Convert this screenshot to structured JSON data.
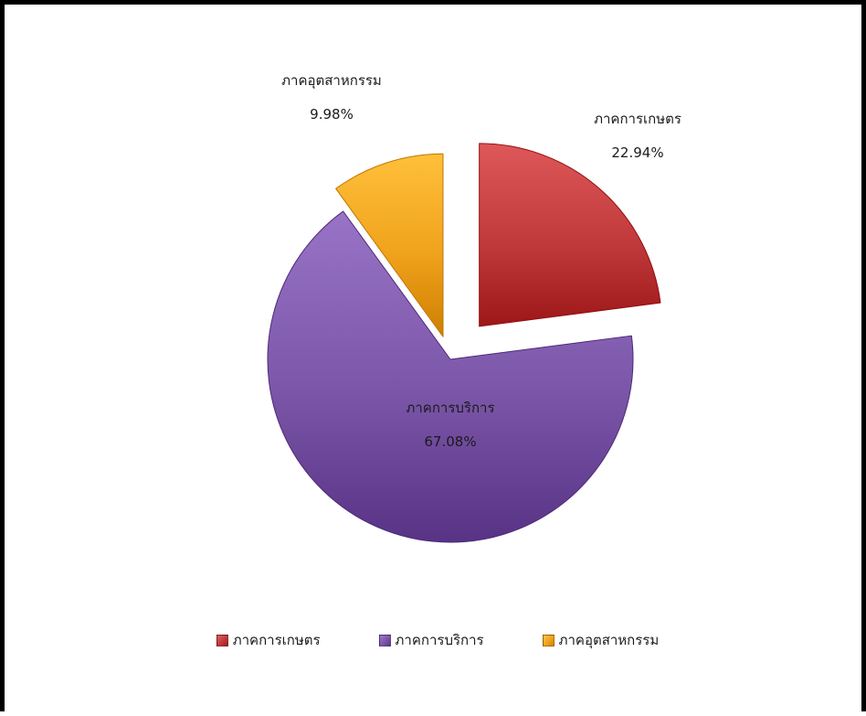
{
  "chart_data": {
    "type": "pie",
    "exploded": true,
    "slices": [
      {
        "label": "ภาคการเกษตร",
        "value": 22.94,
        "value_label": "22.94%",
        "color": "#c0393b"
      },
      {
        "label": "ภาคการบริการ",
        "value": 67.08,
        "value_label": "67.08%",
        "color": "#7b56a8"
      },
      {
        "label": "ภาคอุตสาหกรรม",
        "value": 9.98,
        "value_label": "9.98%",
        "color": "#f0a21c"
      }
    ],
    "legend": {
      "position": "bottom",
      "items": [
        "ภาคการเกษตร",
        "ภาคการบริการ",
        "ภาคอุตสาหกรรม"
      ]
    }
  }
}
